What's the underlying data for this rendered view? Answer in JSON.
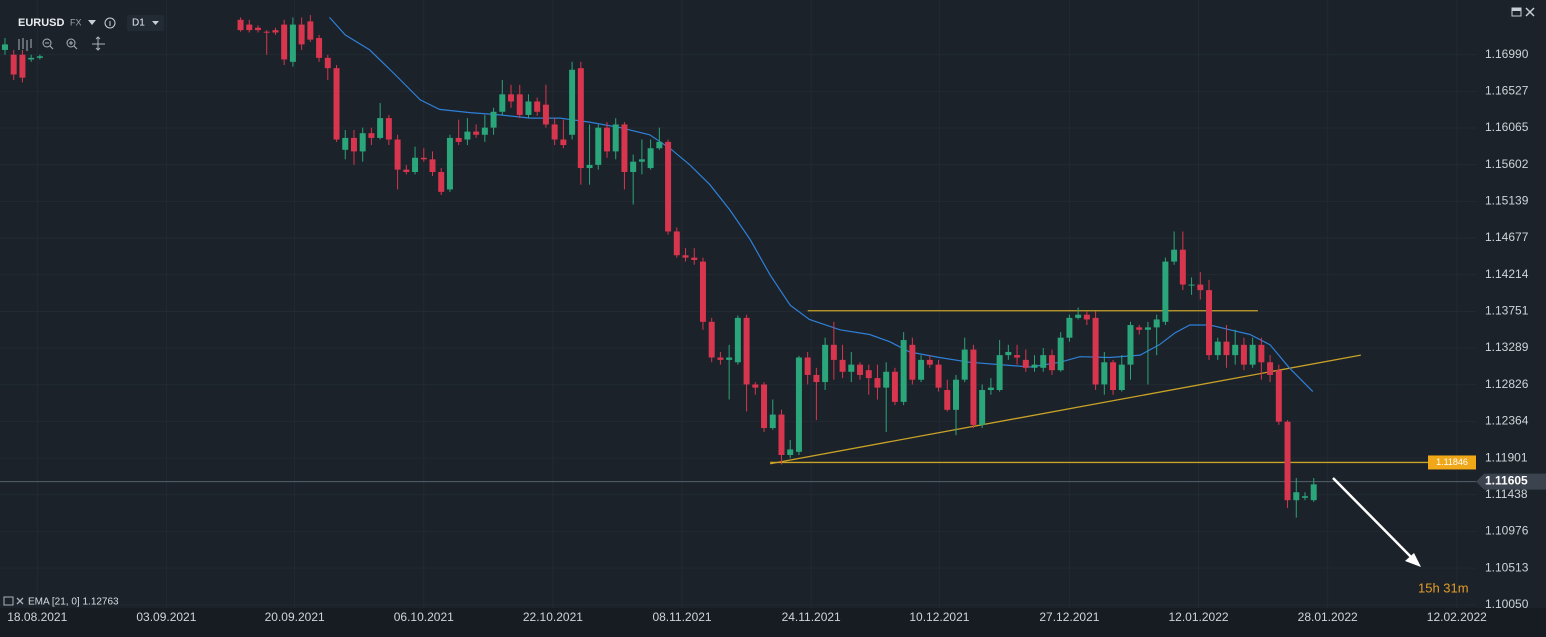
{
  "toolbar": {
    "symbol": "EURUSD",
    "market": "FX",
    "timeframe": "D1"
  },
  "chart_data": {
    "type": "candlestick",
    "x": [
      0,
      1,
      2,
      3,
      4,
      27,
      28,
      29,
      30,
      31,
      32,
      33,
      34,
      35,
      36,
      37,
      38,
      39,
      40,
      41,
      42,
      43,
      44,
      45,
      46,
      47,
      48,
      49,
      50,
      51,
      52,
      53,
      54,
      55,
      56,
      57,
      58,
      59,
      60,
      61,
      62,
      63,
      64,
      65,
      66,
      67,
      68,
      69,
      70,
      71,
      72,
      73,
      74,
      75,
      76,
      77,
      78,
      79,
      80,
      81,
      82,
      83,
      84,
      85,
      86,
      87,
      88,
      89,
      90,
      91,
      92,
      93,
      94,
      95,
      96,
      97,
      98,
      99,
      100,
      101,
      102,
      103,
      104,
      105,
      106,
      107,
      108,
      109,
      110,
      111,
      112,
      113,
      114,
      115,
      116,
      117,
      118,
      119,
      120,
      121,
      122,
      123,
      124,
      125,
      126,
      127,
      128,
      129,
      130,
      131,
      132,
      133,
      134,
      135,
      136,
      137,
      138,
      139,
      140,
      141,
      142,
      143,
      144,
      145,
      146,
      147,
      148,
      149,
      150
    ],
    "open": [
      1.1705,
      1.1699,
      1.1699,
      1.1693,
      1.1695,
      1.1743,
      1.1737,
      1.1733,
      1.1728,
      1.173,
      1.1737,
      1.169,
      1.1737,
      1.1741,
      1.172,
      1.1695,
      1.1682,
      1.1579,
      1.1594,
      1.1577,
      1.16,
      1.1594,
      1.1619,
      1.1592,
      1.1554,
      1.1551,
      1.1569,
      1.1567,
      1.1551,
      1.1529,
      1.1594,
      1.1592,
      1.1602,
      1.1598,
      1.1607,
      1.1627,
      1.1649,
      1.1649,
      1.1623,
      1.164,
      1.1636,
      1.1611,
      1.1592,
      1.1598,
      1.1682,
      1.1556,
      1.156,
      1.1607,
      1.1577,
      1.1611,
      1.1551,
      1.1564,
      1.1556,
      1.1581,
      1.1589,
      1.1476,
      1.1446,
      1.1443,
      1.1438,
      1.1362,
      1.1317,
      1.1314,
      1.1311,
      1.1367,
      1.1283,
      1.1283,
      1.1228,
      1.1245,
      1.1194,
      1.1198,
      1.1317,
      1.1295,
      1.1286,
      1.1333,
      1.1314,
      1.1299,
      1.1308,
      1.1301,
      1.1291,
      1.1279,
      1.1299,
      1.1261,
      1.1333,
      1.1289,
      1.1314,
      1.1308,
      1.1276,
      1.1251,
      1.1289,
      1.1327,
      1.1232,
      1.1276,
      1.1276,
      1.132,
      1.132,
      1.1314,
      1.1304,
      1.1304,
      1.132,
      1.1301,
      1.1342,
      1.1367,
      1.1371,
      1.1367,
      1.1283,
      1.1311,
      1.1276,
      1.1308,
      1.1355,
      1.1352,
      1.1355,
      1.1362,
      1.1438,
      1.1453,
      1.1409,
      1.1409,
      1.1402,
      1.132,
      1.1337,
      1.132,
      1.1333,
      1.1308,
      1.1333,
      1.1311,
      1.1301,
      1.1236,
      1.1137,
      1.114,
      1.1137
    ],
    "high": [
      1.172,
      1.1705,
      1.1705,
      1.1699,
      1.1699,
      1.1746,
      1.1743,
      1.1736,
      1.173,
      1.1733,
      1.1743,
      1.1746,
      1.1746,
      1.1749,
      1.1724,
      1.1699,
      1.1686,
      1.1604,
      1.1604,
      1.1607,
      1.1607,
      1.1638,
      1.1623,
      1.1598,
      1.156,
      1.1583,
      1.1581,
      1.1577,
      1.1556,
      1.1598,
      1.1617,
      1.1619,
      1.1611,
      1.1623,
      1.1632,
      1.1667,
      1.1661,
      1.1661,
      1.1649,
      1.1645,
      1.1661,
      1.1619,
      1.1617,
      1.169,
      1.169,
      1.1611,
      1.1611,
      1.1614,
      1.1619,
      1.1614,
      1.1573,
      1.1592,
      1.1592,
      1.1607,
      1.1592,
      1.1481,
      1.1455,
      1.1455,
      1.1443,
      1.1367,
      1.1324,
      1.1333,
      1.137,
      1.1371,
      1.1286,
      1.1286,
      1.1264,
      1.1251,
      1.1213,
      1.1319,
      1.1324,
      1.1304,
      1.1342,
      1.1362,
      1.1333,
      1.1324,
      1.1311,
      1.1308,
      1.1308,
      1.1311,
      1.1304,
      1.1349,
      1.1342,
      1.132,
      1.132,
      1.1314,
      1.1289,
      1.1295,
      1.1342,
      1.1333,
      1.1283,
      1.1291,
      1.1339,
      1.1333,
      1.1333,
      1.1327,
      1.132,
      1.1329,
      1.1327,
      1.1349,
      1.1371,
      1.138,
      1.1375,
      1.1375,
      1.1324,
      1.1314,
      1.132,
      1.1362,
      1.1358,
      1.1362,
      1.1371,
      1.1443,
      1.1476,
      1.1476,
      1.1418,
      1.1425,
      1.1415,
      1.1342,
      1.1358,
      1.1352,
      1.1342,
      1.1342,
      1.1342,
      1.132,
      1.1308,
      1.1238,
      1.1165,
      1.1147,
      1.1165
    ],
    "low": [
      1.1699,
      1.1667,
      1.1664,
      1.169,
      1.1693,
      1.1728,
      1.1727,
      1.1727,
      1.1699,
      1.1724,
      1.1686,
      1.1684,
      1.1705,
      1.1715,
      1.169,
      1.1667,
      1.1589,
      1.1567,
      1.156,
      1.1564,
      1.1585,
      1.1592,
      1.1585,
      1.1529,
      1.1548,
      1.1548,
      1.1564,
      1.1546,
      1.1522,
      1.1526,
      1.1585,
      1.1585,
      1.1594,
      1.1589,
      1.1598,
      1.1623,
      1.1632,
      1.1619,
      1.1619,
      1.1622,
      1.1607,
      1.1585,
      1.1581,
      1.1592,
      1.1535,
      1.1535,
      1.1554,
      1.1569,
      1.1567,
      1.1529,
      1.151,
      1.1548,
      1.1554,
      1.1579,
      1.1472,
      1.1443,
      1.1438,
      1.1434,
      1.1352,
      1.1311,
      1.1308,
      1.1264,
      1.1308,
      1.1249,
      1.127,
      1.1223,
      1.1226,
      1.1182,
      1.119,
      1.1194,
      1.1283,
      1.1238,
      1.1276,
      1.1289,
      1.1291,
      1.1286,
      1.1289,
      1.127,
      1.1264,
      1.1223,
      1.1257,
      1.1257,
      1.1283,
      1.1286,
      1.1304,
      1.1274,
      1.1249,
      1.1219,
      1.1286,
      1.1228,
      1.1228,
      1.127,
      1.1274,
      1.1314,
      1.1308,
      1.1299,
      1.1299,
      1.1299,
      1.1295,
      1.1299,
      1.1337,
      1.1365,
      1.1358,
      1.1276,
      1.127,
      1.127,
      1.1274,
      1.1289,
      1.1346,
      1.1283,
      1.132,
      1.1358,
      1.1434,
      1.1402,
      1.1396,
      1.139,
      1.1314,
      1.1314,
      1.1304,
      1.1308,
      1.1301,
      1.1304,
      1.1289,
      1.1286,
      1.1232,
      1.1127,
      1.1115,
      1.1137,
      1.1135
    ],
    "close": [
      1.1712,
      1.1674,
      1.167,
      1.1695,
      1.1697,
      1.173,
      1.173,
      1.173,
      1.1727,
      1.1727,
      1.1693,
      1.1737,
      1.1712,
      1.1718,
      1.1695,
      1.1682,
      1.1592,
      1.1594,
      1.1577,
      1.16,
      1.1594,
      1.1619,
      1.1592,
      1.1554,
      1.1551,
      1.1569,
      1.1567,
      1.1551,
      1.1526,
      1.1594,
      1.1589,
      1.1602,
      1.1598,
      1.1607,
      1.1627,
      1.1649,
      1.164,
      1.1623,
      1.164,
      1.1627,
      1.1611,
      1.1592,
      1.1585,
      1.168,
      1.1556,
      1.156,
      1.1607,
      1.1577,
      1.1611,
      1.1551,
      1.1564,
      1.1567,
      1.1581,
      1.1589,
      1.1476,
      1.1446,
      1.1443,
      1.144,
      1.1362,
      1.1317,
      1.1314,
      1.1317,
      1.1367,
      1.1283,
      1.1279,
      1.1228,
      1.1245,
      1.1194,
      1.1201,
      1.1317,
      1.1295,
      1.1286,
      1.1333,
      1.1314,
      1.1299,
      1.1308,
      1.1295,
      1.1291,
      1.1279,
      1.1299,
      1.1261,
      1.1339,
      1.1289,
      1.1314,
      1.1308,
      1.1279,
      1.1251,
      1.1289,
      1.1327,
      1.1232,
      1.1276,
      1.1279,
      1.132,
      1.1324,
      1.1317,
      1.1304,
      1.1308,
      1.132,
      1.1301,
      1.1342,
      1.1367,
      1.1371,
      1.1365,
      1.1283,
      1.1311,
      1.1276,
      1.1308,
      1.1358,
      1.1352,
      1.1355,
      1.1365,
      1.1438,
      1.1453,
      1.1409,
      1.1409,
      1.1402,
      1.132,
      1.1337,
      1.132,
      1.1333,
      1.1308,
      1.1333,
      1.1311,
      1.1295,
      1.1236,
      1.1137,
      1.1147,
      1.1142,
      1.1157
    ],
    "up_color": "#2ba57a",
    "down_color": "#d8354f",
    "xlim": [
      -0.57,
      168.6
    ],
    "xticks": [
      {
        "value": 3.7,
        "label": "18.08.2021"
      },
      {
        "value": 18.5,
        "label": "03.09.2021"
      },
      {
        "value": 33.2,
        "label": "20.09.2021"
      },
      {
        "value": 48,
        "label": "06.10.2021"
      },
      {
        "value": 62.8,
        "label": "22.10.2021"
      },
      {
        "value": 77.6,
        "label": "08.11.2021"
      },
      {
        "value": 92.4,
        "label": "24.11.2021"
      },
      {
        "value": 107.1,
        "label": "10.12.2021"
      },
      {
        "value": 122,
        "label": "27.12.2021"
      },
      {
        "value": 136.8,
        "label": "12.01.2022"
      },
      {
        "value": 151.6,
        "label": "28.01.2022"
      },
      {
        "value": 166.4,
        "label": "12.02.2022"
      }
    ],
    "ylim": [
      1.1001,
      1.1768
    ],
    "yticks": [
      {
        "value": 1.1699,
        "label": "1.16990"
      },
      1.16527,
      1.16065,
      1.15602,
      1.15139,
      1.14677,
      1.14214,
      1.13751,
      1.13289,
      1.12826,
      1.12364,
      1.11901,
      1.11438,
      1.10976,
      1.10513,
      {
        "value": 1.1005,
        "label": "1.10050"
      }
    ],
    "grid": true,
    "ema": {
      "label": "EMA [21, 0] 1.12763",
      "color": "#2f80d8",
      "x": [
        37.2,
        39,
        41.8,
        44.7,
        47.6,
        49.8,
        53.3,
        56.7,
        60.2,
        63.6,
        67,
        70.5,
        73.9,
        76.2,
        78.5,
        80.8,
        83.1,
        85.4,
        87.7,
        90,
        92.2,
        95.7,
        99.1,
        101.4,
        103.7,
        107.1,
        110.6,
        114,
        117.5,
        120.9,
        123.2,
        126.6,
        130.1,
        132.3,
        134.1,
        135.8,
        138.1,
        140.4,
        142.7,
        145,
        147.2,
        149.9
      ],
      "values": [
        1.1746,
        1.1724,
        1.1705,
        1.1674,
        1.1642,
        1.163,
        1.1626,
        1.1623,
        1.1619,
        1.1619,
        1.1614,
        1.1607,
        1.1598,
        1.1581,
        1.156,
        1.1535,
        1.1503,
        1.1466,
        1.1421,
        1.1383,
        1.1365,
        1.1352,
        1.1346,
        1.1337,
        1.1324,
        1.1317,
        1.1311,
        1.1308,
        1.1305,
        1.1311,
        1.1318,
        1.1317,
        1.132,
        1.1333,
        1.1348,
        1.1358,
        1.1358,
        1.1352,
        1.1346,
        1.1333,
        1.1304,
        1.1274
      ]
    },
    "drawing_color": "#c9a227",
    "drawings": [
      {
        "x": [
          92,
          143.6
        ],
        "y": [
          1.1376,
          1.1376
        ]
      },
      {
        "x": [
          87.7,
          155.4
        ],
        "y": [
          1.1183,
          1.132
        ]
      }
    ],
    "level": 1.11846,
    "last_price": 1.11605,
    "countdown": "15h 31m"
  }
}
